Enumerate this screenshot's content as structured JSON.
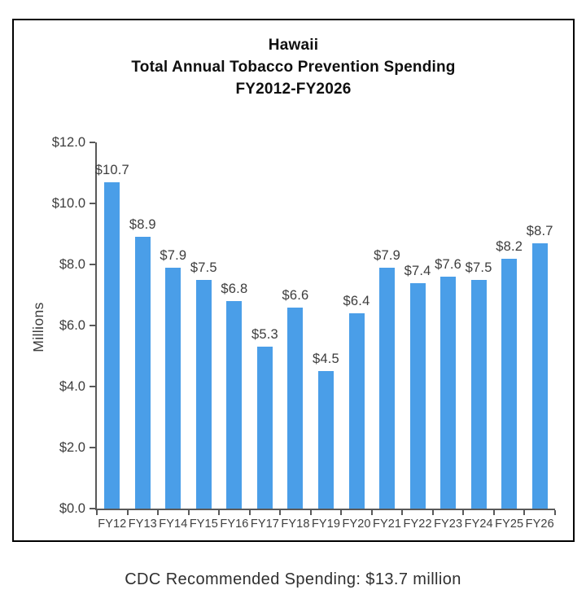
{
  "header": {
    "title_line1": "Hawaii",
    "title_line2": "Total Annual Tobacco Prevention Spending",
    "title_line3": "FY2012-FY2026"
  },
  "footer": {
    "note": "CDC Recommended Spending: $13.7 million"
  },
  "colors": {
    "bar": "#4A9EE8",
    "axis": "#595959",
    "text": "#3D3D3D",
    "title": "#0F0F0F",
    "card_border": "#000000"
  },
  "chart_data": {
    "type": "bar",
    "title": "Hawaii Total Annual Tobacco Prevention Spending FY2012-FY2026",
    "xlabel": "",
    "ylabel": "Millions",
    "categories": [
      "FY12",
      "FY13",
      "FY14",
      "FY15",
      "FY16",
      "FY17",
      "FY18",
      "FY19",
      "FY20",
      "FY21",
      "FY22",
      "FY23",
      "FY24",
      "FY25",
      "FY26"
    ],
    "values": [
      10.7,
      8.9,
      7.9,
      7.5,
      6.8,
      5.3,
      6.6,
      4.5,
      6.4,
      7.9,
      7.4,
      7.6,
      7.5,
      8.2,
      8.7
    ],
    "bar_labels": [
      "$10.7",
      "$8.9",
      "$7.9",
      "$7.5",
      "$6.8",
      "$5.3",
      "$6.6",
      "$4.5",
      "$6.4",
      "$7.9",
      "$7.4",
      "$7.6",
      "$7.5",
      "$8.2",
      "$8.7"
    ],
    "ylim": [
      0,
      12
    ],
    "ytick_interval": 2,
    "ytick_labels": [
      "$0.0",
      "$2.0",
      "$4.0",
      "$6.0",
      "$8.0",
      "$10.0",
      "$12.0"
    ],
    "grid": false,
    "legend": "none",
    "annotation": "CDC Recommended Spending: $13.7 million"
  }
}
